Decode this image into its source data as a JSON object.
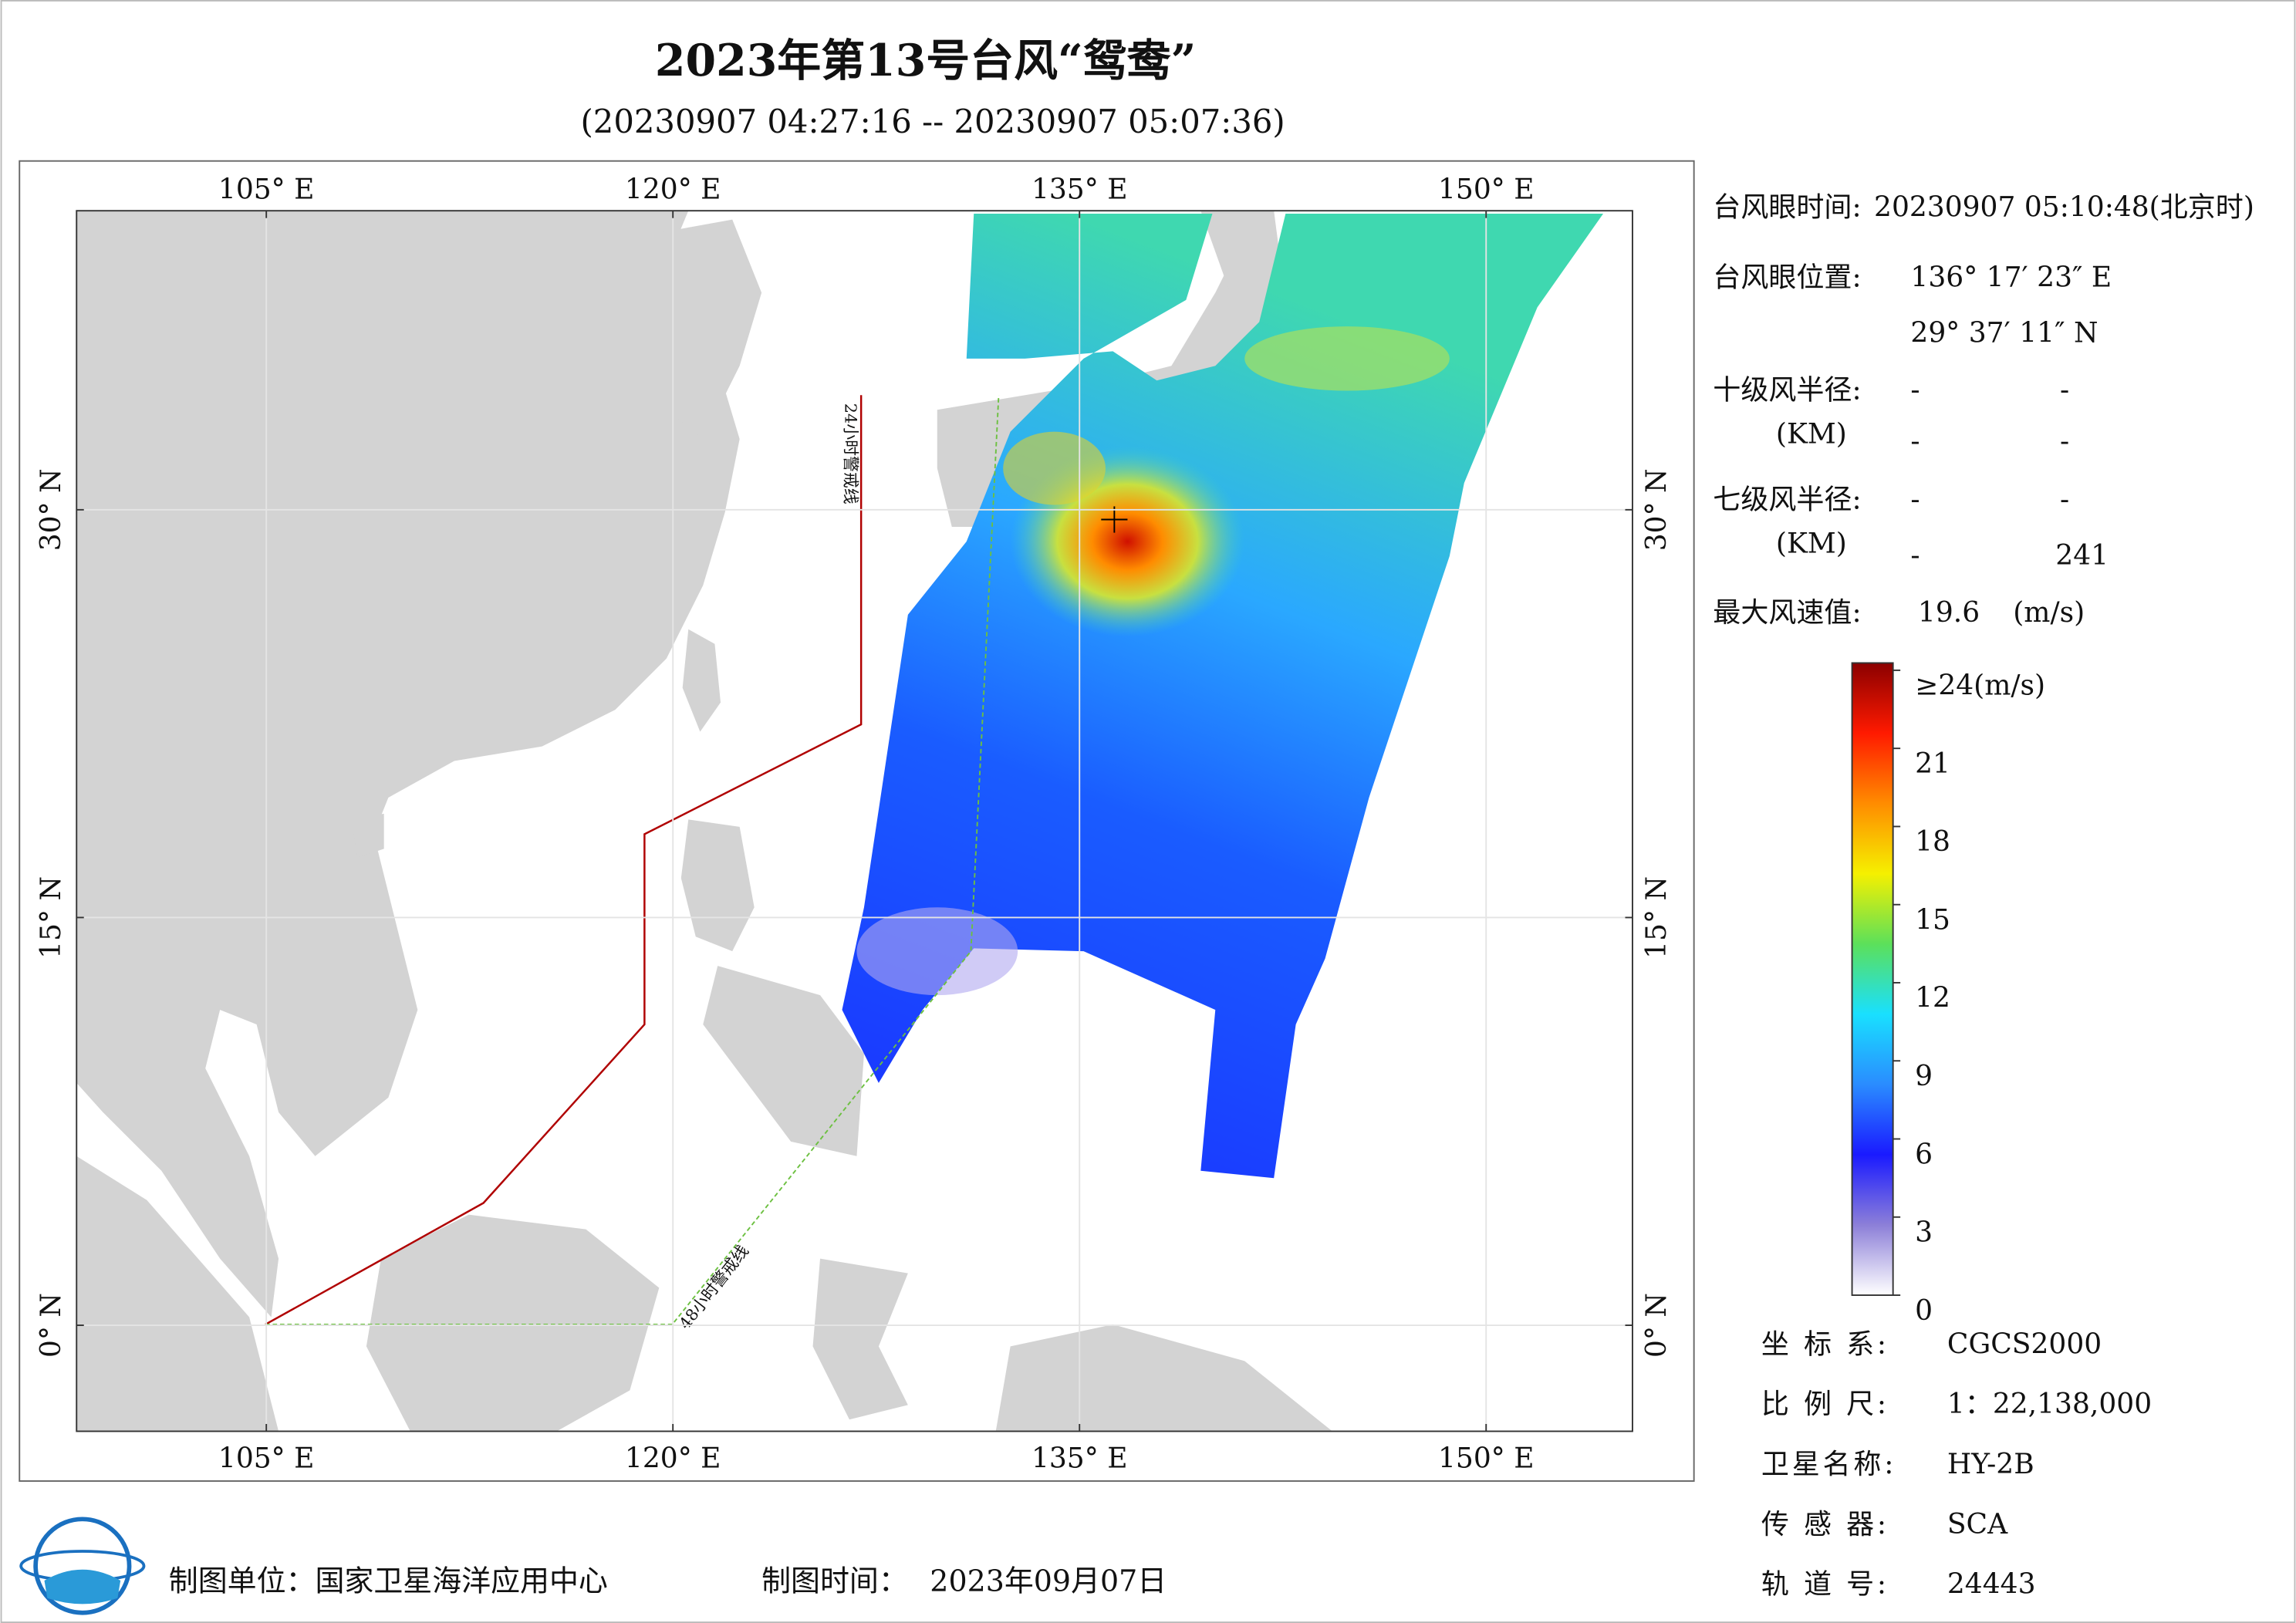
{
  "title": "2023年第13号台风“鸳鸯”",
  "subtitle": "(20230907 04:27:16 -- 20230907 05:07:36)",
  "map": {
    "xlim": [
      98,
      155.4
    ],
    "ylim": [
      -3.9,
      41
    ],
    "grid": true,
    "lon_ticks": [
      {
        "value": 105,
        "label": "105° E"
      },
      {
        "value": 120,
        "label": "120° E"
      },
      {
        "value": 135,
        "label": "135° E"
      },
      {
        "value": 150,
        "label": "150° E"
      }
    ],
    "lat_ticks": [
      {
        "value": 0,
        "label": "0° N"
      },
      {
        "value": 15,
        "label": "15° N"
      },
      {
        "value": 30,
        "label": "30° N"
      }
    ],
    "annotations": [
      "24小时警戒线",
      "48小时警戒线"
    ]
  },
  "info": {
    "eye_time": {
      "label": "台风眼时间:",
      "value": "20230907 05:10:48(北京时)"
    },
    "eye_position": {
      "label": "台风眼位置:",
      "lon": "136° 17′ 23″ E",
      "lat": "29° 37′ 11″ N"
    },
    "radius_10": {
      "label": "十级风半径:",
      "unit": "(KM)",
      "values": [
        "-",
        "-",
        "-",
        "-"
      ]
    },
    "radius_7": {
      "label": "七级风半径:",
      "unit": "(KM)",
      "values": [
        "-",
        "-",
        "-",
        "241"
      ]
    },
    "max_wind": {
      "label": "最大风速值:",
      "value": "19.6",
      "unit": "(m/s)"
    }
  },
  "colorbar": {
    "range": [
      0,
      24
    ],
    "ticks": [
      0,
      3,
      6,
      9,
      12,
      15,
      18,
      21,
      {
        "value": 24,
        "label": "≥24(m/s)"
      }
    ],
    "colors": [
      "#ffffff",
      "#8c7fd8",
      "#1a1aff",
      "#2a8cff",
      "#19e0ff",
      "#5ce05a",
      "#f5f000",
      "#ff8c00",
      "#ff1a00",
      "#8b0000"
    ]
  },
  "metadata": [
    {
      "label": "坐 标 系:",
      "value": "CGCS2000"
    },
    {
      "label": "比 例 尺:",
      "value": "1：22,138,000"
    },
    {
      "label": "卫星名称:",
      "value": "HY-2B"
    },
    {
      "label": "传 感 器:",
      "value": "SCA"
    },
    {
      "label": "轨 道 号:",
      "value": "24443"
    }
  ],
  "footer": {
    "producer": "制图单位：国家卫星海洋应用中心",
    "date_label": "制图时间：",
    "date": "2023年09月07日"
  }
}
